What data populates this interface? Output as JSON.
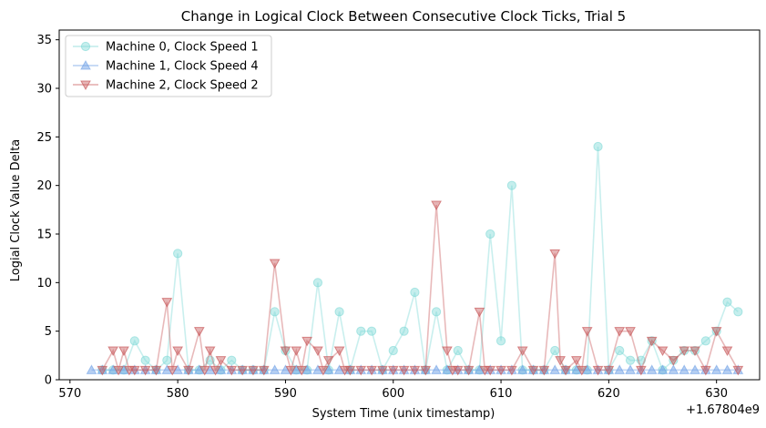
{
  "chart_data": {
    "type": "line",
    "title": "Change in Logical Clock Between Consecutive Clock Ticks, Trial 5",
    "xlabel": "System Time (unix timestamp)",
    "ylabel": "Logial Clock Value Delta",
    "x_offset_label": "+1.67804e9",
    "xlim": [
      569,
      634
    ],
    "ylim": [
      0,
      36
    ],
    "x_ticks": [
      570,
      580,
      590,
      600,
      610,
      620,
      630
    ],
    "y_ticks": [
      0,
      5,
      10,
      15,
      20,
      25,
      30,
      35
    ],
    "legend_position": "upper left",
    "series": [
      {
        "name": "Machine 0, Clock Speed 1",
        "color": "#7fd9d6",
        "marker": "circle",
        "x": [
          573,
          574,
          575,
          576,
          577,
          578,
          579,
          580,
          581,
          582,
          583,
          584,
          585,
          586,
          587,
          588,
          589,
          590,
          591,
          592,
          593,
          594,
          595,
          596,
          597,
          598,
          599,
          600,
          601,
          602,
          603,
          604,
          605,
          606,
          607,
          608,
          609,
          610,
          611,
          612,
          613,
          614,
          615,
          616,
          617,
          618,
          619,
          620,
          621,
          622,
          623,
          624,
          625,
          626,
          627,
          628,
          629,
          630,
          631,
          632
        ],
        "y": [
          1,
          1,
          1,
          4,
          2,
          1,
          2,
          13,
          1,
          1,
          2,
          1,
          2,
          1,
          1,
          1,
          7,
          3,
          1,
          1,
          10,
          1,
          7,
          1,
          5,
          5,
          1,
          3,
          5,
          9,
          1,
          7,
          1,
          3,
          1,
          1,
          15,
          4,
          20,
          1,
          1,
          1,
          3,
          1,
          1,
          1,
          24,
          1,
          3,
          2,
          2,
          4,
          1,
          2,
          3,
          3,
          4,
          5,
          8,
          7
        ]
      },
      {
        "name": "Machine 1, Clock Speed 4",
        "color": "#6ea0e6",
        "marker": "triangle-up",
        "x": [
          572,
          573,
          574,
          575,
          576,
          577,
          578,
          579,
          580,
          581,
          582,
          583,
          584,
          585,
          586,
          587,
          588,
          589,
          590,
          591,
          592,
          593,
          594,
          595,
          596,
          597,
          598,
          599,
          600,
          601,
          602,
          603,
          604,
          605,
          606,
          607,
          608,
          609,
          610,
          611,
          612,
          613,
          614,
          615,
          616,
          617,
          618,
          619,
          620,
          621,
          622,
          623,
          624,
          625,
          626,
          627,
          628,
          629,
          630,
          631,
          632
        ],
        "y": [
          1,
          1,
          1,
          1,
          1,
          1,
          1,
          1,
          1,
          1,
          1,
          1,
          1,
          1,
          1,
          1,
          1,
          1,
          1,
          1,
          1,
          1,
          1,
          1,
          1,
          1,
          1,
          1,
          1,
          1,
          1,
          1,
          1,
          1,
          1,
          1,
          1,
          1,
          1,
          1,
          1,
          1,
          1,
          1,
          1,
          1,
          1,
          1,
          1,
          1,
          1,
          1,
          1,
          1,
          1,
          1,
          1,
          1,
          1,
          1,
          1
        ]
      },
      {
        "name": "Machine 2, Clock Speed 2",
        "color": "#c8585a",
        "marker": "triangle-down",
        "x": [
          573,
          574,
          574.5,
          575,
          575.5,
          576,
          577,
          578,
          579,
          579.5,
          580,
          581,
          582,
          582.5,
          583,
          583.5,
          584,
          585,
          586,
          587,
          588,
          589,
          590,
          590.5,
          591,
          591.5,
          592,
          593,
          593.5,
          594,
          595,
          595.5,
          596,
          597,
          598,
          599,
          600,
          601,
          602,
          603,
          604,
          605,
          605.5,
          606,
          607,
          608,
          608.5,
          609,
          610,
          611,
          612,
          613,
          614,
          615,
          615.5,
          616,
          617,
          617.5,
          618,
          619,
          620,
          621,
          622,
          623,
          624,
          625,
          626,
          627,
          628,
          629,
          630,
          631,
          632
        ],
        "y": [
          1,
          3,
          1,
          3,
          1,
          1,
          1,
          1,
          8,
          1,
          3,
          1,
          5,
          1,
          3,
          1,
          2,
          1,
          1,
          1,
          1,
          12,
          3,
          1,
          3,
          1,
          4,
          3,
          1,
          2,
          3,
          1,
          1,
          1,
          1,
          1,
          1,
          1,
          1,
          1,
          18,
          3,
          1,
          1,
          1,
          7,
          1,
          1,
          1,
          1,
          3,
          1,
          1,
          13,
          2,
          1,
          2,
          1,
          5,
          1,
          1,
          5,
          5,
          1,
          4,
          3,
          2,
          3,
          3,
          1,
          5,
          3,
          1
        ]
      }
    ]
  }
}
